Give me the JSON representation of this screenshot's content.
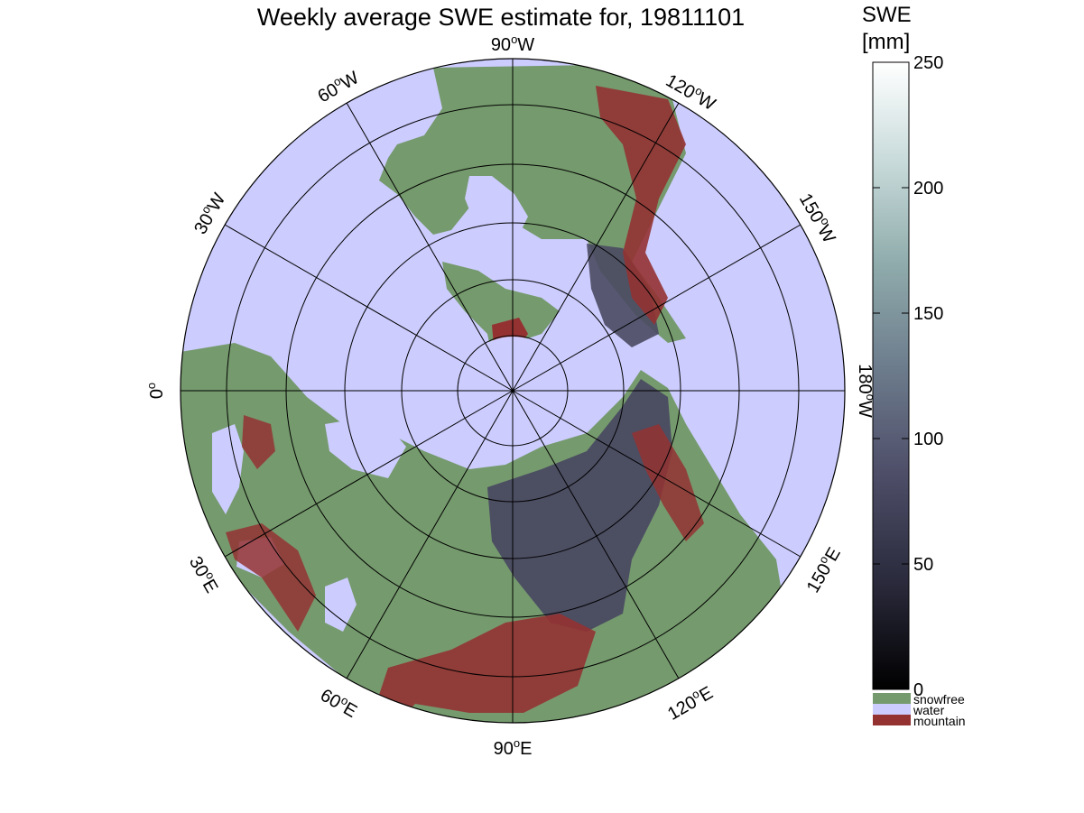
{
  "title": "Weekly average SWE estimate for, 19811101",
  "colorbar": {
    "title_line1": "SWE",
    "title_line2": "[mm]",
    "ticks": [
      "0",
      "50",
      "100",
      "150",
      "200",
      "250"
    ],
    "range": [
      0,
      250
    ],
    "gradient": [
      "#000000",
      "#2a2a3c",
      "#4f4f6a",
      "#6e7e8e",
      "#90acac",
      "#c8dada",
      "#ffffff"
    ]
  },
  "legend": [
    {
      "label": "snowfree",
      "color": "#759a6d"
    },
    {
      "label": "water",
      "color": "#ccccfe"
    },
    {
      "label": "mountain",
      "color": "#943232"
    }
  ],
  "map": {
    "projection": "north polar stereographic",
    "lon_labels": [
      {
        "text": "90",
        "suffix": "W"
      },
      {
        "text": "120",
        "suffix": "W"
      },
      {
        "text": "150",
        "suffix": "W"
      },
      {
        "text": "180",
        "suffix": "W"
      },
      {
        "text": "150",
        "suffix": "E"
      },
      {
        "text": "120",
        "suffix": "E"
      },
      {
        "text": "90",
        "suffix": "E"
      },
      {
        "text": "60",
        "suffix": "E"
      },
      {
        "text": "30",
        "suffix": "E"
      },
      {
        "text": "0",
        "suffix": ""
      },
      {
        "text": "30",
        "suffix": "W"
      },
      {
        "text": "60",
        "suffix": "W"
      }
    ]
  }
}
